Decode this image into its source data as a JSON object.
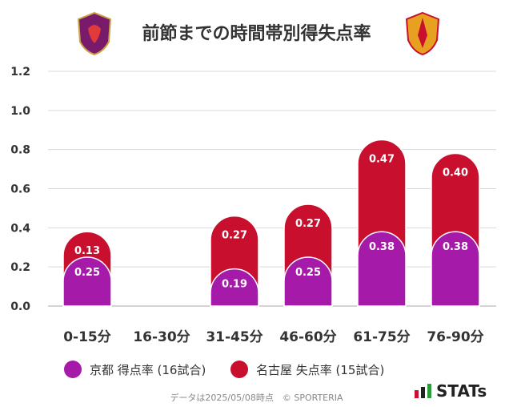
{
  "title": "前節までの時間帯別得失点率",
  "legend": {
    "home_label": "京都 得点率 (16試合)",
    "away_label": "名古屋 失点率 (15試合)"
  },
  "footer": "データは2025/05/08時点　© SPORTERIA",
  "brand": "STATs",
  "colors": {
    "scored": "#a51aa8",
    "conceded": "#c8102e",
    "grid": "#d9d9d9"
  },
  "chart_data": {
    "type": "bar",
    "stacked": true,
    "categories": [
      "0-15分",
      "16-30分",
      "31-45分",
      "46-60分",
      "61-75分",
      "76-90分"
    ],
    "series": [
      {
        "name": "京都 得点率 (16試合)",
        "values": [
          0.25,
          0,
          0.19,
          0.25,
          0.38,
          0.38
        ],
        "labels": [
          "0.25",
          "",
          "0.19",
          "0.25",
          "0.38",
          "0.38"
        ]
      },
      {
        "name": "名古屋 失点率 (15試合)",
        "values": [
          0.13,
          0,
          0.27,
          0.27,
          0.47,
          0.4
        ],
        "labels": [
          "0.13",
          "",
          "0.27",
          "0.27",
          "0.47",
          "0.40"
        ]
      }
    ],
    "yticks": [
      "0.0",
      "0.2",
      "0.4",
      "0.6",
      "0.8",
      "1.0",
      "1.2"
    ],
    "ylim": [
      0,
      1.2
    ],
    "grid": true,
    "legend_position": "bottom"
  }
}
